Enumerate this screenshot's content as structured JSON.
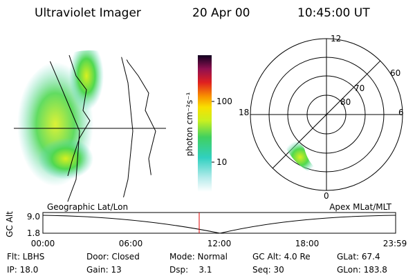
{
  "header": {
    "title": "Ultraviolet Imager",
    "date": "20 Apr 00",
    "time": "10:45:00 UT"
  },
  "colorbar": {
    "label": "photon cm⁻²s⁻¹",
    "ticks": [
      "100",
      "10"
    ]
  },
  "polar": {
    "mlt_labels": [
      "12",
      "18",
      "6",
      "0"
    ],
    "lat_labels": [
      "60",
      "70",
      "80"
    ]
  },
  "timeline": {
    "left_title": "Geographic Lat/Lon",
    "right_title": "Apex MLat/MLT",
    "y_label": "GC Alt",
    "y_ticks": [
      "9.0",
      "1.8"
    ],
    "x_ticks": [
      "00:00",
      "06:00",
      "12:00",
      "18:00",
      "23:59"
    ]
  },
  "status": {
    "rows": [
      [
        "Flt: LBHS",
        "Door: Closed",
        "Mode: Normal",
        "GC Alt: 4.0 Re",
        "GLat: 67.4"
      ],
      [
        "IP: 18.0",
        "Gain: 13",
        "Dsp:    3.1",
        "Seq: 30",
        "GLon: 183.8"
      ]
    ]
  }
}
